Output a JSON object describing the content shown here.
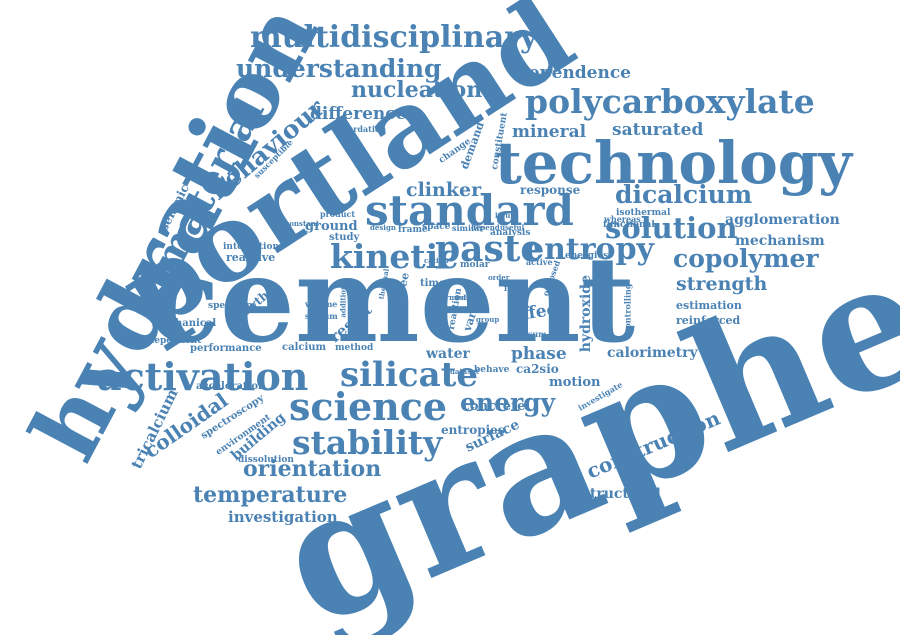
{
  "color": "#4a82b4",
  "words": [
    "graphene",
    "cement",
    "portland",
    "hydration",
    "technology",
    "standard",
    "multidisciplinary",
    "understanding",
    "polycarboxylate",
    "material",
    "paste",
    "kinetic",
    "entropy",
    "silicate",
    "activation",
    "science",
    "stability",
    "solution",
    "dicalcium",
    "copolymer",
    "colloidal",
    "energy",
    "orientation",
    "temperature",
    "construction",
    "behaviour",
    "nucleation",
    "dependence",
    "saturated",
    "mineral",
    "clinker",
    "difference",
    "strength",
    "investigation",
    "agglomeration",
    "mechanism",
    "tricalcium",
    "structural",
    "effect",
    "phase",
    "hydroxide",
    "calorimetry",
    "motion",
    "water",
    "surface",
    "building",
    "result",
    "concrete",
    "entropies",
    "seismic",
    "ground",
    "growth",
    "reactive",
    "response",
    "reinforced",
    "estimation",
    "ca2sio",
    "spectroscopy",
    "acceleration",
    "mechanical",
    "dependent",
    "performance",
    "calcium",
    "method",
    "interaction",
    "spectrum",
    "demand",
    "study",
    "frame",
    "space",
    "similar",
    "analysis",
    "energies",
    "isothermal",
    "controlling",
    "functional",
    "whereas",
    "various",
    "degree",
    "time",
    "reaction",
    "form",
    "molar",
    "active",
    "cation",
    "product",
    "constant",
    "design",
    "change",
    "constituent",
    "retardation",
    "susceptible",
    "volume",
    "sodium",
    "investigate",
    "environment",
    "dissolution",
    "behave",
    "dataset",
    "gypsum",
    "opposed",
    "addition",
    "depend",
    "useful",
    "group",
    "hydraulic",
    "liquid",
    "solid",
    "intermediate",
    "order",
    "thermal"
  ]
}
